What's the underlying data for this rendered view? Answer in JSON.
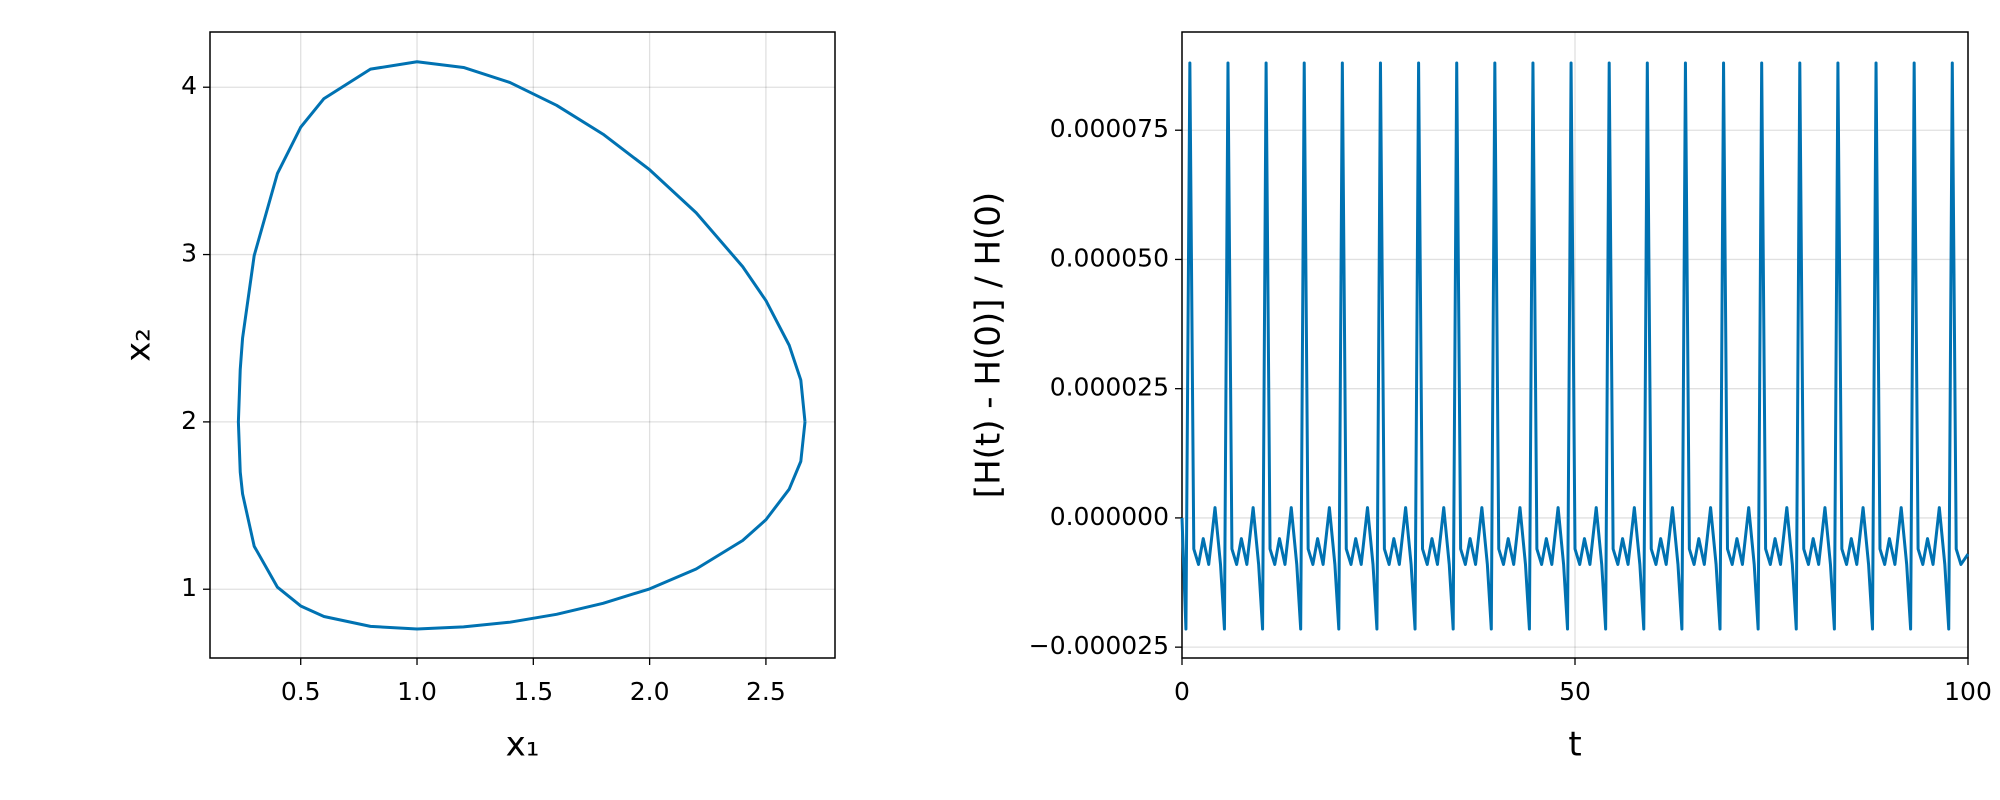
{
  "chart_data": [
    {
      "type": "line",
      "xlabel": "x₁",
      "ylabel": "x₂",
      "color": "#0072b2",
      "grid": true,
      "xlim": [
        0.11,
        2.797
      ],
      "ylim": [
        0.589,
        4.33
      ],
      "xticks": [
        0.5,
        {
          "value": 1,
          "label": "1.0"
        },
        1.5,
        {
          "value": 2,
          "label": "2.0"
        },
        2.5
      ],
      "yticks": [
        1,
        2,
        3,
        4
      ],
      "x": [
        2.668,
        2.65,
        2.6,
        2.5,
        2.4,
        2.2,
        2.0,
        1.8,
        1.6,
        1.4,
        1.2,
        1.0,
        0.8,
        0.6,
        0.5,
        0.4,
        0.3,
        0.25,
        0.24,
        0.232,
        0.24,
        0.25,
        0.3,
        0.4,
        0.5,
        0.6,
        0.8,
        1.0,
        1.2,
        1.4,
        1.6,
        1.8,
        2.0,
        2.2,
        2.4,
        2.5,
        2.6,
        2.65,
        2.668
      ],
      "values": [
        2.0,
        2.25,
        2.458,
        2.725,
        2.928,
        3.25,
        3.507,
        3.719,
        3.892,
        4.028,
        4.118,
        4.152,
        4.108,
        3.932,
        3.761,
        3.485,
        2.994,
        2.5,
        2.314,
        2.0,
        1.7,
        1.57,
        1.257,
        1.012,
        0.9,
        0.837,
        0.778,
        0.762,
        0.775,
        0.803,
        0.85,
        0.916,
        1.002,
        1.121,
        1.291,
        1.415,
        1.598,
        1.764,
        2.0
      ]
    },
    {
      "type": "line",
      "xlabel": "t",
      "ylabel": "[H(t) - H(0)] / H(0)",
      "color": "#0072b2",
      "grid": true,
      "xlim": [
        0,
        100
      ],
      "ylim": [
        -2.71e-05,
        9.4e-05
      ],
      "xticks": [
        0,
        50,
        100
      ],
      "yticks": [
        {
          "value": -2.5e-05,
          "label": "−0.000025"
        },
        {
          "value": 0,
          "label": "0.000000"
        },
        {
          "value": 2.5e-05,
          "label": "0.000025"
        },
        {
          "value": 5e-05,
          "label": "0.000050"
        },
        {
          "value": 7.5e-05,
          "label": "0.000075"
        }
      ],
      "x": [
        0.0,
        0.5,
        1.0,
        1.5,
        2.1,
        2.7,
        3.4,
        4.2,
        4.9,
        5.4,
        5.85,
        6.35,
        6.95,
        7.55,
        8.25,
        9.05,
        9.75,
        10.25,
        10.7,
        11.2,
        11.8,
        12.4,
        13.1,
        13.9,
        14.6,
        15.1,
        15.55,
        16.05,
        16.65,
        17.25,
        17.95,
        18.75,
        19.45,
        19.95,
        20.4,
        20.9,
        21.5,
        22.1,
        22.8,
        23.6,
        24.3,
        24.8,
        25.25,
        25.75,
        26.35,
        26.95,
        27.65,
        28.45,
        29.15,
        29.65,
        30.1,
        30.6,
        31.2,
        31.8,
        32.5,
        33.3,
        34.0,
        34.5,
        34.95,
        35.45,
        36.05,
        36.65,
        37.35,
        38.15,
        38.85,
        39.35,
        39.8,
        40.3,
        40.9,
        41.5,
        42.2,
        43.0,
        43.7,
        44.2,
        44.65,
        45.15,
        45.75,
        46.35,
        47.05,
        47.85,
        48.55,
        49.05,
        49.5,
        50.0,
        50.6,
        51.2,
        51.9,
        52.7,
        53.4,
        53.9,
        54.35,
        54.85,
        55.45,
        56.05,
        56.75,
        57.55,
        58.25,
        58.75,
        59.2,
        59.7,
        60.3,
        60.9,
        61.6,
        62.4,
        63.1,
        63.6,
        64.05,
        64.55,
        65.15,
        65.75,
        66.45,
        67.25,
        67.95,
        68.45,
        68.9,
        69.4,
        70.0,
        70.6,
        71.3,
        72.1,
        72.8,
        73.3,
        73.75,
        74.25,
        74.85,
        75.45,
        76.15,
        76.95,
        77.65,
        78.15,
        78.6,
        79.1,
        79.7,
        80.3,
        81.0,
        81.8,
        82.5,
        83.0,
        83.45,
        83.95,
        84.55,
        85.15,
        85.85,
        86.65,
        87.35,
        87.85,
        88.3,
        88.8,
        89.4,
        90.0,
        90.7,
        91.5,
        92.2,
        92.7,
        93.15,
        93.65,
        94.25,
        94.85,
        95.55,
        96.35,
        97.05,
        97.55,
        98.0,
        98.5,
        99.1,
        100.0
      ],
      "values": [
        0,
        -2.15e-05,
        8.8e-05,
        -6e-06,
        -9e-06,
        -4e-06,
        -9e-06,
        2e-06,
        -9e-06,
        -2.15e-05,
        8.8e-05,
        -6e-06,
        -9e-06,
        -4e-06,
        -9e-06,
        2e-06,
        -9e-06,
        -2.15e-05,
        8.8e-05,
        -6e-06,
        -9e-06,
        -4e-06,
        -9e-06,
        2e-06,
        -9e-06,
        -2.15e-05,
        8.8e-05,
        -6e-06,
        -9e-06,
        -4e-06,
        -9e-06,
        2e-06,
        -9e-06,
        -2.15e-05,
        8.8e-05,
        -6e-06,
        -9e-06,
        -4e-06,
        -9e-06,
        2e-06,
        -9e-06,
        -2.15e-05,
        8.8e-05,
        -6e-06,
        -9e-06,
        -4e-06,
        -9e-06,
        2e-06,
        -9e-06,
        -2.15e-05,
        8.8e-05,
        -6e-06,
        -9e-06,
        -4e-06,
        -9e-06,
        2e-06,
        -9e-06,
        -2.15e-05,
        8.8e-05,
        -6e-06,
        -9e-06,
        -4e-06,
        -9e-06,
        2e-06,
        -9e-06,
        -2.15e-05,
        8.8e-05,
        -6e-06,
        -9e-06,
        -4e-06,
        -9e-06,
        2e-06,
        -9e-06,
        -2.15e-05,
        8.8e-05,
        -6e-06,
        -9e-06,
        -4e-06,
        -9e-06,
        2e-06,
        -9e-06,
        -2.15e-05,
        8.8e-05,
        -6e-06,
        -9e-06,
        -4e-06,
        -9e-06,
        2e-06,
        -9e-06,
        -2.15e-05,
        8.8e-05,
        -6e-06,
        -9e-06,
        -4e-06,
        -9e-06,
        2e-06,
        -9e-06,
        -2.15e-05,
        8.8e-05,
        -6e-06,
        -9e-06,
        -4e-06,
        -9e-06,
        2e-06,
        -9e-06,
        -2.15e-05,
        8.8e-05,
        -6e-06,
        -9e-06,
        -4e-06,
        -9e-06,
        2e-06,
        -9e-06,
        -2.15e-05,
        8.8e-05,
        -6e-06,
        -9e-06,
        -4e-06,
        -9e-06,
        2e-06,
        -9e-06,
        -2.15e-05,
        8.8e-05,
        -6e-06,
        -9e-06,
        -4e-06,
        -9e-06,
        2e-06,
        -9e-06,
        -2.15e-05,
        8.8e-05,
        -6e-06,
        -9e-06,
        -4e-06,
        -9e-06,
        2e-06,
        -9e-06,
        -2.15e-05,
        8.8e-05,
        -6e-06,
        -9e-06,
        -4e-06,
        -9e-06,
        2e-06,
        -9e-06,
        -2.15e-05,
        8.8e-05,
        -6e-06,
        -9e-06,
        -4e-06,
        -9e-06,
        2e-06,
        -9e-06,
        -2.15e-05,
        8.8e-05,
        -6e-06,
        -9e-06,
        -4e-06,
        -9e-06,
        2e-06,
        -9e-06,
        -2.15e-05,
        8.8e-05,
        -6e-06,
        -9e-06,
        -7e-06
      ]
    }
  ]
}
